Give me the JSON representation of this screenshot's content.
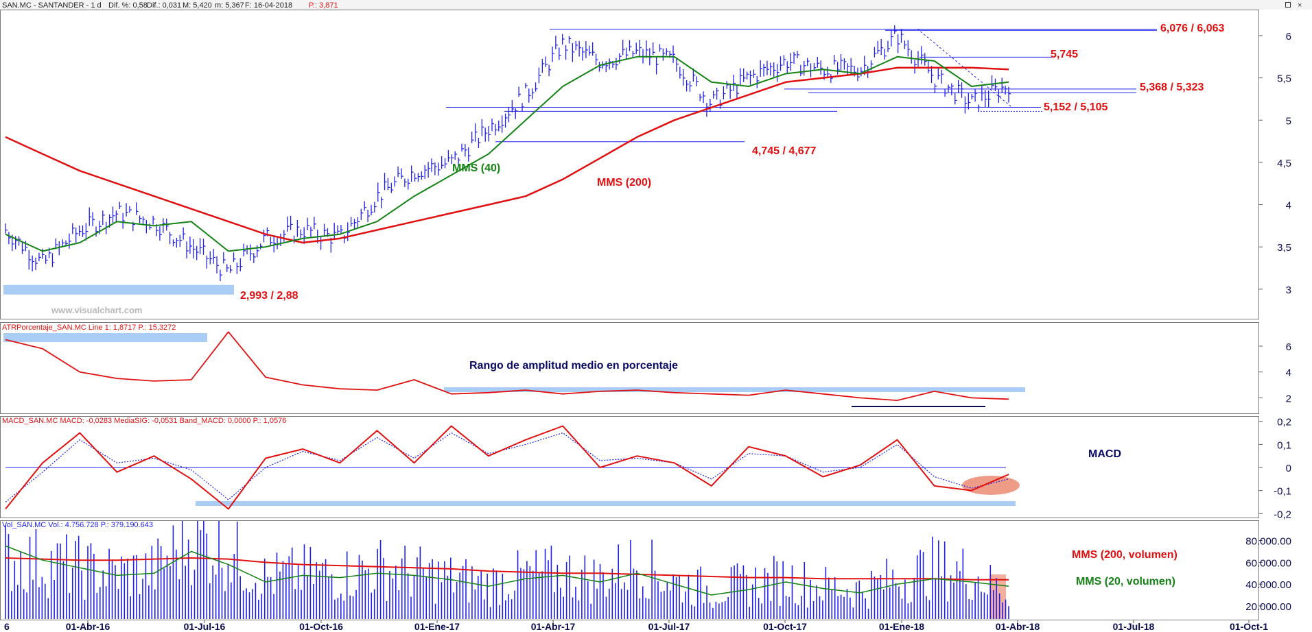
{
  "colors": {
    "price": "#1e1ef0",
    "ma200": "#e01010",
    "ma40": "#148214",
    "annotRed": "#e01010",
    "annotGreen": "#148214",
    "annotNavy": "#0a0a64",
    "band": "#a9cdf5",
    "label": "#ff0000",
    "hdrBlue": "#1e1ef0"
  },
  "price_panel": {
    "header": {
      "symbol": "SAN.MC - SANTANDER - 1 d",
      "dif_pct": "Dif. %: 0,58",
      "dif": "Dif.: 0,031",
      "max": "M: 5,420",
      "min": "m: 5,367",
      "date": "F: 16-04-2018",
      "p": "P.: 3,871"
    },
    "levels": [
      {
        "label": "6,076 / 6,063"
      },
      {
        "label": "5,745"
      },
      {
        "label": "5,368 / 5,323"
      },
      {
        "label": "5,152 / 5,105"
      },
      {
        "label": "4,745 / 4,677"
      },
      {
        "label": "2,993 / 2,88"
      }
    ],
    "ma40_label": "MMS (40)",
    "ma200_label": "MMS (200)",
    "watermark": "www.visualchart.com"
  },
  "atr_panel": {
    "header": "ATRPorcentaje_SAN.MC Line 1: 1,8717 P.: 15,3272",
    "title": "Rango de amplitud medio en porcentaje"
  },
  "macd_panel": {
    "header": "MACD_SAN.MC MACD: -0,0283 MediaSIG: -0,0531 Band_MACD: 0,0000 P.: 1,0576",
    "title": "MACD"
  },
  "vol_panel": {
    "header": "Vol_SAN.MC Vol.: 4.756.728 P.: 379.190.643",
    "ma200_label": "MMS (200, volumen)",
    "ma20_label": "MMS (20, volumen)"
  },
  "x_axis": {
    "labels": [
      "6",
      "01-Abr-16",
      "01-Jul-16",
      "01-Oct-16",
      "01-Ene-17",
      "01-Abr-17",
      "01-Jul-17",
      "01-Oct-17",
      "01-Ene-18",
      "01-Abr-18",
      "01-Jul-18",
      "01-Oct-1"
    ]
  },
  "chart_data": [
    {
      "type": "line",
      "title": "SAN.MC - SANTANDER - 1 d",
      "x": [
        "2016-01",
        "2016-02",
        "2016-03",
        "2016-04",
        "2016-05",
        "2016-06",
        "2016-07",
        "2016-08",
        "2016-09",
        "2016-10",
        "2016-11",
        "2016-12",
        "2017-01",
        "2017-02",
        "2017-03",
        "2017-04",
        "2017-05",
        "2017-06",
        "2017-07",
        "2017-08",
        "2017-09",
        "2017-10",
        "2017-11",
        "2017-12",
        "2018-01",
        "2018-02",
        "2018-03",
        "2018-04"
      ],
      "series": [
        {
          "name": "",
          "values": [
            3.7,
            3.3,
            3.7,
            3.9,
            3.8,
            3.5,
            3.2,
            3.6,
            3.7,
            3.6,
            4.1,
            4.4,
            4.5,
            4.9,
            5.3,
            5.9,
            5.7,
            5.8,
            5.7,
            5.2,
            5.5,
            5.7,
            5.6,
            5.6,
            6.0,
            5.5,
            5.2,
            5.42
          ]
        },
        {
          "name": "MMS (40)",
          "values": [
            3.65,
            3.45,
            3.55,
            3.8,
            3.75,
            3.8,
            3.45,
            3.5,
            3.6,
            3.65,
            3.8,
            4.1,
            4.35,
            4.6,
            5.0,
            5.4,
            5.65,
            5.75,
            5.75,
            5.45,
            5.4,
            5.55,
            5.6,
            5.55,
            5.75,
            5.7,
            5.4,
            5.45
          ]
        },
        {
          "name": "MMS (200)",
          "values": [
            4.8,
            4.6,
            4.4,
            4.25,
            4.1,
            3.95,
            3.8,
            3.65,
            3.55,
            3.6,
            3.7,
            3.8,
            3.9,
            4.0,
            4.1,
            4.3,
            4.55,
            4.8,
            5.0,
            5.15,
            5.3,
            5.45,
            5.5,
            5.55,
            5.62,
            5.62,
            5.62,
            5.6
          ]
        }
      ],
      "ylim": [
        2.65,
        6.3
      ],
      "yticks": [
        3,
        3.5,
        4,
        4.5,
        5,
        5.5,
        6
      ],
      "ytick_labels": [
        "3",
        "3,5",
        "4",
        "4,5",
        "5",
        "5,5",
        "6"
      ],
      "levels": [
        6.076,
        6.063,
        5.745,
        5.368,
        5.323,
        5.152,
        5.105,
        4.745,
        4.677,
        2.993,
        2.88
      ]
    },
    {
      "type": "line",
      "title": "ATRPorcentaje_SAN.MC",
      "x": [
        "2016-01",
        "2016-02",
        "2016-03",
        "2016-04",
        "2016-05",
        "2016-06",
        "2016-07",
        "2016-08",
        "2016-09",
        "2016-10",
        "2016-11",
        "2016-12",
        "2017-01",
        "2017-02",
        "2017-03",
        "2017-04",
        "2017-05",
        "2017-06",
        "2017-07",
        "2017-08",
        "2017-09",
        "2017-10",
        "2017-11",
        "2017-12",
        "2018-01",
        "2018-02",
        "2018-03",
        "2018-04"
      ],
      "series": [
        {
          "name": "",
          "values": [
            6.5,
            5.8,
            4.0,
            3.5,
            3.3,
            3.4,
            7.1,
            3.6,
            3.0,
            2.7,
            2.6,
            3.4,
            2.3,
            2.4,
            2.6,
            2.3,
            2.5,
            2.6,
            2.4,
            2.3,
            2.2,
            2.6,
            2.3,
            2.0,
            1.8,
            2.5,
            2.0,
            1.9
          ]
        }
      ],
      "ylim": [
        0.8,
        7.8
      ],
      "yticks": [
        2,
        4,
        6
      ],
      "ytick_labels": [
        "2",
        "4",
        "6"
      ]
    },
    {
      "type": "line",
      "title": "MACD_SAN.MC",
      "x": [
        "2016-01",
        "2016-02",
        "2016-03",
        "2016-04",
        "2016-05",
        "2016-06",
        "2016-07",
        "2016-08",
        "2016-09",
        "2016-10",
        "2016-11",
        "2016-12",
        "2017-01",
        "2017-02",
        "2017-03",
        "2017-04",
        "2017-05",
        "2017-06",
        "2017-07",
        "2017-08",
        "2017-09",
        "2017-10",
        "2017-11",
        "2017-12",
        "2018-01",
        "2018-02",
        "2018-03",
        "2018-04"
      ],
      "series": [
        {
          "name": "MACD",
          "values": [
            -0.18,
            0.02,
            0.15,
            -0.02,
            0.05,
            -0.05,
            -0.18,
            0.04,
            0.08,
            0.02,
            0.16,
            0.02,
            0.18,
            0.05,
            0.12,
            0.18,
            0.0,
            0.05,
            0.02,
            -0.08,
            0.09,
            0.05,
            -0.04,
            0.01,
            0.12,
            -0.08,
            -0.1,
            -0.03
          ]
        },
        {
          "name": "MediaSIG",
          "values": [
            -0.15,
            -0.02,
            0.12,
            0.02,
            0.04,
            -0.01,
            -0.14,
            0.0,
            0.07,
            0.03,
            0.13,
            0.04,
            0.15,
            0.06,
            0.1,
            0.15,
            0.03,
            0.04,
            0.02,
            -0.05,
            0.06,
            0.05,
            -0.02,
            0.0,
            0.1,
            -0.04,
            -0.09,
            -0.05
          ]
        }
      ],
      "ylim": [
        -0.22,
        0.22
      ],
      "yticks": [
        -0.2,
        -0.1,
        0,
        0.1,
        0.2
      ],
      "ytick_labels": [
        "-0,2",
        "-0,1",
        "0",
        "0,1",
        "0,2"
      ]
    },
    {
      "type": "bar",
      "title": "Vol_SAN.MC",
      "x": [
        "2016-01",
        "2016-02",
        "2016-03",
        "2016-04",
        "2016-05",
        "2016-06",
        "2016-07",
        "2016-08",
        "2016-09",
        "2016-10",
        "2016-11",
        "2016-12",
        "2017-01",
        "2017-02",
        "2017-03",
        "2017-04",
        "2017-05",
        "2017-06",
        "2017-07",
        "2017-08",
        "2017-09",
        "2017-10",
        "2017-11",
        "2017-12",
        "2018-01",
        "2018-02",
        "2018-03",
        "2018-04"
      ],
      "values": [
        65000000,
        60000000,
        55000000,
        50000000,
        52000000,
        85000000,
        70000000,
        45000000,
        50000000,
        48000000,
        55000000,
        50000000,
        45000000,
        40000000,
        48000000,
        50000000,
        45000000,
        60000000,
        42000000,
        35000000,
        40000000,
        45000000,
        38000000,
        35000000,
        45000000,
        55000000,
        50000000,
        30000000
      ],
      "series": [
        {
          "name": "MMS (200, volumen)",
          "values": [
            64000000,
            63000000,
            62000000,
            62000000,
            63000000,
            64000000,
            63000000,
            60000000,
            58000000,
            57000000,
            56000000,
            55000000,
            54000000,
            52000000,
            51000000,
            50000000,
            50000000,
            49000000,
            48000000,
            47000000,
            46000000,
            46000000,
            45000000,
            45000000,
            45000000,
            45000000,
            44000000,
            44000000
          ]
        },
        {
          "name": "MMS (20, volumen)",
          "values": [
            75000000,
            62000000,
            55000000,
            48000000,
            50000000,
            70000000,
            58000000,
            42000000,
            48000000,
            46000000,
            50000000,
            48000000,
            44000000,
            38000000,
            45000000,
            48000000,
            42000000,
            50000000,
            40000000,
            30000000,
            35000000,
            42000000,
            36000000,
            32000000,
            40000000,
            45000000,
            42000000,
            38000000
          ]
        }
      ],
      "ylim": [
        8000000,
        98000000
      ],
      "yticks": [
        20000000,
        40000000,
        60000000,
        80000000
      ],
      "ytick_labels": [
        "20.000.00",
        "40.000.00",
        "60.000.00",
        "80.000.00"
      ]
    }
  ]
}
